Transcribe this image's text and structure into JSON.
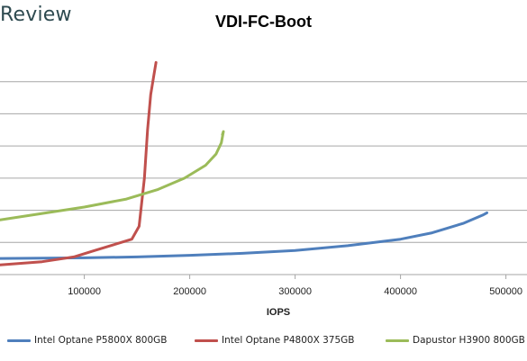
{
  "brand": {
    "text": "Review"
  },
  "chart_data": {
    "type": "line",
    "title": "VDI-FC-Boot",
    "xlabel": "IOPS",
    "ylabel": "",
    "xlim": [
      20000,
      520000
    ],
    "ylim": [
      0,
      7
    ],
    "x_ticks": [
      100000,
      200000,
      300000,
      400000,
      500000
    ],
    "x_tick_labels": [
      "100000",
      "200000",
      "300000",
      "400000",
      "500000"
    ],
    "y_gridlines": [
      1,
      2,
      3,
      4,
      5,
      6
    ],
    "grid": true,
    "legend": "bottom",
    "series": [
      {
        "name": "Intel Optane P5800X 800GB",
        "color": "#4f7fbc",
        "x": [
          20000,
          100000,
          150000,
          200000,
          250000,
          300000,
          350000,
          400000,
          430000,
          460000,
          478000,
          482000
        ],
        "y": [
          0.5,
          0.52,
          0.55,
          0.6,
          0.66,
          0.75,
          0.9,
          1.1,
          1.3,
          1.6,
          1.85,
          1.92
        ]
      },
      {
        "name": "Intel Optane P4800X 375GB",
        "color": "#c0504d",
        "x": [
          20000,
          60000,
          90000,
          110000,
          130000,
          145000,
          152000,
          157000,
          160000,
          163000,
          166000,
          168000
        ],
        "y": [
          0.3,
          0.4,
          0.55,
          0.75,
          0.95,
          1.1,
          1.5,
          3.0,
          4.5,
          5.6,
          6.2,
          6.6
        ]
      },
      {
        "name": "Dapustor H3900 800GB",
        "color": "#9bbb59",
        "x": [
          20000,
          60000,
          100000,
          140000,
          170000,
          195000,
          215000,
          225000,
          230000,
          232000,
          231000
        ],
        "y": [
          1.7,
          1.9,
          2.1,
          2.35,
          2.65,
          3.0,
          3.4,
          3.75,
          4.1,
          4.45,
          4.35
        ]
      }
    ]
  }
}
